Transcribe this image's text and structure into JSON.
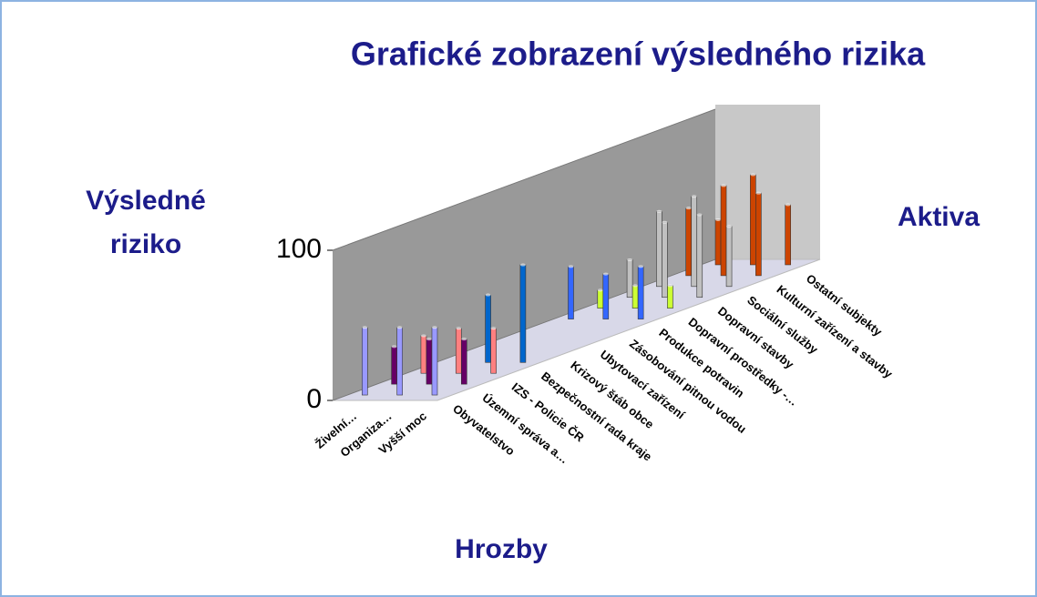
{
  "chart_data": {
    "type": "bar3d",
    "title": "Grafické zobrazení výsledného rizika",
    "ylabel": [
      "Výsledné",
      "riziko"
    ],
    "xlabel": "Hrozby",
    "zlabel": "Aktiva",
    "categories": [
      "Živelní…",
      "Organiza…",
      "Vyšší moc"
    ],
    "ylim": [
      0,
      100
    ],
    "yticks": [
      0,
      100
    ],
    "series": [
      {
        "name": "Obyvatelstvo",
        "color": "#9999ff",
        "values": [
          45,
          45,
          45
        ]
      },
      {
        "name": "Územní správa a…",
        "color": "#660066",
        "values": [
          25,
          30,
          30
        ]
      },
      {
        "name": "IZS - Policie ČR",
        "color": "#ff8080",
        "values": [
          25,
          30,
          30
        ]
      },
      {
        "name": "Bezpečnostní rada kraje",
        "color": "#0066cc",
        "values": [
          null,
          45,
          65
        ]
      },
      {
        "name": "Krizový štáb obce",
        "color": "#3366ff",
        "values": [
          null,
          null,
          null
        ]
      },
      {
        "name": "Ubytovací zařízení",
        "color": "#3366ff",
        "values": [
          null,
          null,
          null
        ]
      },
      {
        "name": "Zásobování pitnou vodou",
        "color": "#3366ff",
        "values": [
          null,
          null,
          null
        ]
      },
      {
        "name": "Produkce potravin",
        "color": "#3366ff",
        "values": [
          35,
          30,
          35
        ]
      },
      {
        "name": "Dopravní prostředky -…",
        "color": "#ccff33",
        "values": [
          12,
          15,
          15
        ]
      },
      {
        "name": "Dopravní stavby",
        "color": "#c0c0c0",
        "values": [
          25,
          50,
          55
        ]
      },
      {
        "name": "Sociální služby",
        "color": "#c0c0c0",
        "values": [
          50,
          60,
          40
        ]
      },
      {
        "name": "Kulturní zařízení a stavby",
        "color": "#cc4400",
        "values": [
          45,
          60,
          55
        ]
      },
      {
        "name": "Ostatní subjekty",
        "color": "#cc4400",
        "values": [
          30,
          60,
          40
        ]
      }
    ]
  }
}
